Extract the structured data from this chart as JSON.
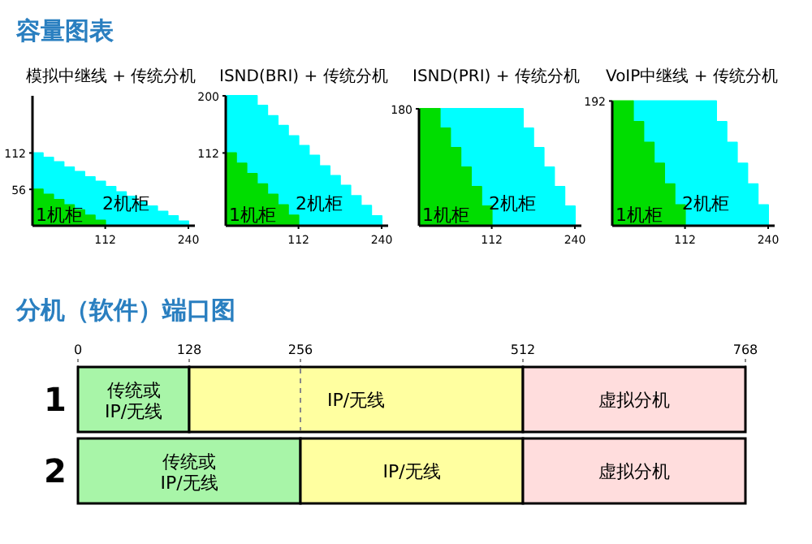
{
  "chart_data": [
    {
      "type": "area",
      "title": "模拟中继线 + 传统分机",
      "annotations": [
        "容量图表"
      ],
      "xlim": [
        0,
        250
      ],
      "ylim": [
        0,
        200
      ],
      "xticks": [
        112,
        240
      ],
      "yticks": [
        56,
        112
      ],
      "series": [
        {
          "name": "2机柜",
          "color": "#00ffff",
          "x": [
            0,
            16,
            16,
            32,
            32,
            48,
            48,
            64,
            64,
            80,
            80,
            96,
            96,
            112,
            112,
            128,
            128,
            144,
            144,
            160,
            160,
            176,
            176,
            192,
            192,
            208,
            208,
            224,
            224,
            240,
            240
          ],
          "values": [
            112,
            112,
            105,
            105,
            98,
            98,
            90,
            90,
            83,
            83,
            75,
            75,
            68,
            68,
            60,
            60,
            52,
            52,
            45,
            45,
            37,
            37,
            30,
            30,
            22,
            22,
            15,
            15,
            7,
            7,
            0
          ]
        },
        {
          "name": "1机柜",
          "color": "#00dd00",
          "x": [
            0,
            16,
            16,
            32,
            32,
            48,
            48,
            64,
            64,
            80,
            80,
            96,
            96,
            112,
            112
          ],
          "values": [
            56,
            56,
            48,
            48,
            40,
            40,
            32,
            32,
            24,
            24,
            16,
            16,
            8,
            8,
            0
          ]
        }
      ]
    },
    {
      "type": "area",
      "title": "ISND(BRI) + 传统分机",
      "xlim": [
        0,
        250
      ],
      "ylim": [
        0,
        200
      ],
      "xticks": [
        112,
        240
      ],
      "yticks": [
        112,
        200
      ],
      "series": [
        {
          "name": "2机柜",
          "color": "#00ffff",
          "x": [
            0,
            48,
            48,
            64,
            64,
            80,
            80,
            96,
            96,
            112,
            112,
            128,
            128,
            144,
            144,
            160,
            160,
            176,
            176,
            192,
            192,
            208,
            208,
            224,
            224,
            240,
            240
          ],
          "values": [
            200,
            200,
            185,
            185,
            169,
            169,
            154,
            154,
            138,
            138,
            123,
            123,
            108,
            108,
            92,
            92,
            77,
            77,
            62,
            62,
            46,
            46,
            31,
            31,
            15,
            15,
            0
          ]
        },
        {
          "name": "1机柜",
          "color": "#00dd00",
          "x": [
            0,
            16,
            16,
            32,
            32,
            48,
            48,
            64,
            64,
            80,
            80,
            96,
            96,
            112,
            112
          ],
          "values": [
            112,
            112,
            96,
            96,
            80,
            80,
            64,
            64,
            48,
            48,
            32,
            32,
            16,
            16,
            0
          ]
        }
      ]
    },
    {
      "type": "area",
      "title": "ISND(PRI) + 传统分机",
      "xlim": [
        0,
        250
      ],
      "ylim": [
        0,
        180
      ],
      "xticks": [
        112,
        240
      ],
      "yticks": [
        180
      ],
      "series": [
        {
          "name": "2机柜",
          "color": "#00ffff",
          "x": [
            32,
            160,
            160,
            176,
            176,
            192,
            192,
            208,
            208,
            224,
            224,
            240,
            240
          ],
          "values": [
            180,
            180,
            150,
            150,
            120,
            120,
            90,
            90,
            60,
            60,
            30,
            30,
            0
          ]
        },
        {
          "name": "1机柜",
          "color": "#00dd00",
          "x": [
            0,
            32,
            32,
            48,
            48,
            64,
            64,
            80,
            80,
            96,
            96,
            112,
            112
          ],
          "values": [
            180,
            180,
            150,
            150,
            120,
            120,
            90,
            90,
            60,
            60,
            30,
            30,
            0
          ]
        }
      ]
    },
    {
      "type": "area",
      "title": "VoIP中继线 + 传统分机",
      "xlim": [
        0,
        250
      ],
      "ylim": [
        0,
        192
      ],
      "xticks": [
        112,
        240
      ],
      "yticks": [
        192
      ],
      "series": [
        {
          "name": "2机柜",
          "color": "#00ffff",
          "x": [
            32,
            160,
            160,
            176,
            176,
            192,
            192,
            208,
            208,
            224,
            224,
            240,
            240
          ],
          "values": [
            192,
            192,
            160,
            160,
            128,
            128,
            96,
            96,
            64,
            64,
            32,
            32,
            0
          ]
        },
        {
          "name": "1机柜",
          "color": "#00dd00",
          "x": [
            0,
            32,
            32,
            48,
            48,
            64,
            64,
            80,
            80,
            96,
            96,
            112,
            112
          ],
          "values": [
            192,
            192,
            160,
            160,
            128,
            128,
            96,
            96,
            64,
            64,
            32,
            32,
            0
          ]
        }
      ]
    },
    {
      "type": "bar",
      "title": "分机（软件）端口图",
      "orientation": "horizontal",
      "stacked": true,
      "categories": [
        "1",
        "2"
      ],
      "xlim": [
        0,
        768
      ],
      "xticks": [
        0,
        128,
        256,
        512,
        768
      ],
      "ref_lines": [
        {
          "axis": "x",
          "value": 256,
          "line_style": "dashed",
          "color": "#888888"
        }
      ],
      "series": [
        {
          "name": "传统或 IP/无线",
          "color": "#a8f5a8",
          "values": [
            128,
            256
          ]
        },
        {
          "name": "IP/无线",
          "color": "#ffffa0",
          "values": [
            384,
            256
          ]
        },
        {
          "name": "虚拟分机",
          "color": "#ffdddd",
          "values": [
            256,
            256
          ]
        }
      ]
    }
  ]
}
